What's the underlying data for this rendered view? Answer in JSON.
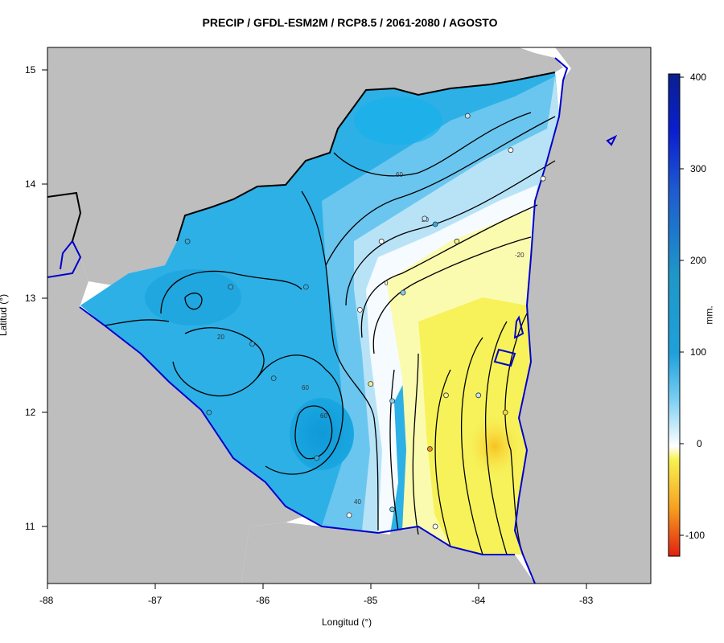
{
  "title": "PRECIP / GFDL-ESM2M / RCP8.5 / 2061-2080 / AGOSTO",
  "xlabel": "Longitud (°)",
  "ylabel": "Latitud (°)",
  "colorbar": {
    "unit_label": "mm.",
    "ticks": [
      "400",
      "300",
      "200",
      "100",
      "0",
      "-100"
    ],
    "range": [
      -120,
      405
    ],
    "colors": {
      "dark_blue": "#0a1f8f",
      "mid_blue": "#1fa0dc",
      "light_blue": "#74ccf2",
      "white": "#ffffff",
      "yellow": "#f7f250",
      "orange": "#f7a020",
      "red": "#e02010"
    }
  },
  "map": {
    "x_ticks": [
      "-88",
      "-87",
      "-86",
      "-85",
      "-84",
      "-83"
    ],
    "y_ticks": [
      "15",
      "14",
      "13",
      "12",
      "11"
    ],
    "xlim": [
      -88,
      -82.4
    ],
    "ylim": [
      10.5,
      15.2
    ],
    "land_color": "#bebebe",
    "water_color": "#ffffff",
    "coast_color": "#0000cc",
    "contour_labels": [
      "60",
      "20",
      "-20",
      "0",
      "60",
      "60",
      "40",
      "20"
    ]
  },
  "chart_data": {
    "type": "heatmap",
    "title": "PRECIP / GFDL-ESM2M / RCP8.5 / 2061-2080 / AGOSTO",
    "xlabel": "Longitud (°)",
    "ylabel": "Latitud (°)",
    "xlim": [
      -88,
      -82.4
    ],
    "ylim": [
      10.5,
      15.2
    ],
    "colorbar_label": "mm.",
    "colorbar_range": [
      -120,
      405
    ],
    "contour_levels": [
      -20,
      0,
      20,
      40,
      60,
      80
    ],
    "anomaly_regions": [
      {
        "lon": -85.6,
        "lat": 12.1,
        "value": 90
      },
      {
        "lon": -86.6,
        "lat": 12.8,
        "value": 80
      },
      {
        "lon": -85.2,
        "lat": 14.4,
        "value": 70
      },
      {
        "lon": -84.6,
        "lat": 13.9,
        "value": 50
      },
      {
        "lon": -83.6,
        "lat": 14.3,
        "value": 10
      },
      {
        "lon": -85.0,
        "lat": 13.0,
        "value": 0
      },
      {
        "lon": -84.2,
        "lat": 12.5,
        "value": -20
      },
      {
        "lon": -83.8,
        "lat": 11.7,
        "value": -50
      }
    ],
    "station_points": [
      {
        "lon": -86.7,
        "lat": 13.5,
        "value": 80
      },
      {
        "lon": -86.3,
        "lat": 13.1,
        "value": 80
      },
      {
        "lon": -86.1,
        "lat": 12.6,
        "value": 90
      },
      {
        "lon": -85.9,
        "lat": 12.3,
        "value": 85
      },
      {
        "lon": -86.5,
        "lat": 12.0,
        "value": 70
      },
      {
        "lon": -85.5,
        "lat": 11.6,
        "value": 60
      },
      {
        "lon": -85.6,
        "lat": 13.1,
        "value": 70
      },
      {
        "lon": -85.1,
        "lat": 12.9,
        "value": 0
      },
      {
        "lon": -84.5,
        "lat": 13.7,
        "value": 20
      },
      {
        "lon": -84.4,
        "lat": 13.65,
        "value": 60
      },
      {
        "lon": -84.2,
        "lat": 13.5,
        "value": -10
      },
      {
        "lon": -84.9,
        "lat": 13.5,
        "value": 10
      },
      {
        "lon": -84.7,
        "lat": 13.05,
        "value": 40
      },
      {
        "lon": -84.1,
        "lat": 14.6,
        "value": 30
      },
      {
        "lon": -83.7,
        "lat": 14.3,
        "value": 10
      },
      {
        "lon": -83.4,
        "lat": 14.05,
        "value": 10
      },
      {
        "lon": -85.0,
        "lat": 12.25,
        "value": -10
      },
      {
        "lon": -84.8,
        "lat": 12.1,
        "value": 50
      },
      {
        "lon": -84.45,
        "lat": 11.68,
        "value": -60
      },
      {
        "lon": -84.3,
        "lat": 12.15,
        "value": -10
      },
      {
        "lon": -84.0,
        "lat": 12.15,
        "value": 30
      },
      {
        "lon": -83.75,
        "lat": 12.0,
        "value": -30
      },
      {
        "lon": -85.2,
        "lat": 11.1,
        "value": 0
      },
      {
        "lon": -84.8,
        "lat": 11.15,
        "value": 40
      },
      {
        "lon": -84.4,
        "lat": 11.0,
        "value": 0
      }
    ]
  }
}
